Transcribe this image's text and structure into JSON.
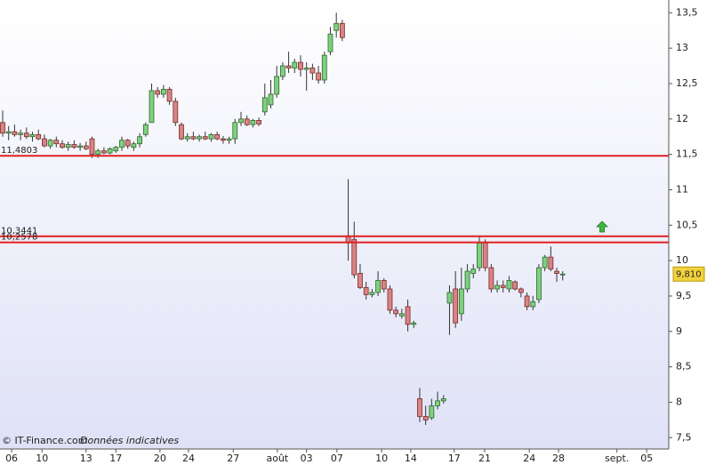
{
  "chart_data": {
    "type": "candlestick",
    "source": "© IT-Finance.com",
    "note": "Données indicatives",
    "x": [
      0,
      1,
      2,
      3,
      4,
      5,
      6,
      7,
      8,
      9,
      10,
      11,
      12,
      13,
      14,
      15,
      16,
      17,
      18,
      19,
      20,
      21,
      22,
      23,
      24,
      25,
      26,
      27,
      28,
      29,
      30,
      31,
      32,
      33,
      34,
      35,
      36,
      37,
      38,
      39,
      40,
      41,
      42,
      43,
      44,
      45,
      46,
      47,
      48,
      49,
      50,
      51,
      52,
      53,
      54,
      55,
      56,
      57,
      58,
      59,
      60,
      61,
      62,
      63,
      64,
      65,
      66,
      67,
      68,
      69,
      70,
      71,
      72,
      73,
      74,
      75,
      76,
      77,
      78,
      79,
      80,
      81,
      82,
      83,
      84,
      85,
      86,
      87,
      88,
      89,
      90,
      91,
      92,
      93,
      94
    ],
    "open": [
      11.95,
      11.8,
      11.82,
      11.78,
      11.8,
      11.75,
      11.78,
      11.72,
      11.62,
      11.7,
      11.65,
      11.6,
      11.64,
      11.6,
      11.62,
      11.72,
      11.5,
      11.55,
      11.52,
      11.55,
      11.6,
      11.7,
      11.6,
      11.65,
      11.78,
      11.95,
      12.4,
      12.35,
      12.42,
      12.25,
      11.92,
      11.72,
      11.75,
      11.72,
      11.75,
      11.72,
      11.78,
      11.72,
      11.7,
      11.72,
      11.95,
      12.0,
      11.92,
      11.98,
      12.1,
      12.2,
      12.35,
      12.6,
      12.75,
      12.72,
      12.8,
      12.7,
      12.72,
      12.65,
      12.55,
      12.95,
      13.25,
      13.35,
      10.35,
      10.3,
      9.82,
      9.62,
      9.52,
      9.55,
      9.72,
      9.6,
      9.3,
      9.22,
      9.35,
      9.1,
      8.05,
      7.8,
      7.78,
      7.95,
      8.02,
      9.4,
      9.6,
      9.25,
      9.6,
      9.82,
      9.9,
      10.25,
      9.9,
      9.6,
      9.65,
      9.6,
      9.7,
      9.6,
      9.5,
      9.35,
      9.45,
      9.9,
      10.05,
      9.85,
      9.8
    ],
    "high": [
      12.12,
      11.9,
      11.92,
      11.85,
      11.88,
      11.82,
      11.85,
      11.78,
      11.72,
      11.75,
      11.7,
      11.68,
      11.7,
      11.66,
      11.68,
      11.75,
      11.58,
      11.6,
      11.6,
      11.62,
      11.75,
      11.72,
      11.68,
      11.8,
      11.95,
      12.5,
      12.45,
      12.48,
      12.45,
      12.3,
      11.95,
      11.8,
      11.82,
      11.78,
      11.82,
      11.8,
      11.82,
      11.76,
      11.75,
      12.0,
      12.1,
      12.05,
      12.0,
      12.02,
      12.5,
      12.55,
      12.75,
      12.8,
      12.95,
      12.85,
      12.9,
      12.8,
      12.78,
      12.75,
      12.95,
      13.3,
      13.5,
      13.4,
      11.15,
      10.55,
      9.95,
      9.7,
      9.6,
      9.85,
      9.75,
      9.65,
      9.35,
      9.32,
      9.45,
      9.15,
      8.2,
      7.95,
      8.05,
      8.15,
      8.1,
      9.65,
      9.85,
      9.9,
      9.95,
      9.95,
      10.35,
      10.3,
      9.95,
      9.72,
      9.72,
      9.78,
      9.72,
      9.62,
      9.55,
      9.5,
      9.95,
      10.08,
      10.2,
      9.9,
      9.85
    ],
    "low": [
      11.75,
      11.7,
      11.75,
      11.7,
      11.72,
      11.68,
      11.7,
      11.6,
      11.58,
      11.6,
      11.58,
      11.55,
      11.58,
      11.55,
      11.56,
      11.45,
      11.45,
      11.5,
      11.5,
      11.52,
      11.55,
      11.58,
      11.55,
      11.6,
      11.75,
      11.95,
      12.3,
      12.3,
      12.2,
      11.9,
      11.7,
      11.68,
      11.7,
      11.68,
      11.7,
      11.68,
      11.7,
      11.65,
      11.65,
      11.65,
      11.9,
      11.9,
      11.88,
      11.9,
      12.05,
      12.15,
      12.3,
      12.55,
      12.65,
      12.65,
      12.6,
      12.4,
      12.55,
      12.5,
      12.5,
      12.9,
      13.15,
      13.1,
      10.0,
      9.75,
      9.6,
      9.45,
      9.48,
      9.5,
      9.55,
      9.25,
      9.2,
      9.18,
      9.0,
      9.05,
      7.72,
      7.68,
      7.75,
      7.9,
      7.98,
      8.95,
      9.05,
      9.15,
      9.55,
      9.75,
      9.85,
      9.85,
      9.55,
      9.55,
      9.55,
      9.55,
      9.58,
      9.48,
      9.3,
      9.3,
      9.4,
      9.85,
      9.85,
      9.7,
      9.72
    ],
    "close": [
      11.8,
      11.82,
      11.78,
      11.8,
      11.75,
      11.78,
      11.72,
      11.62,
      11.7,
      11.65,
      11.6,
      11.64,
      11.6,
      11.62,
      11.58,
      11.5,
      11.55,
      11.52,
      11.58,
      11.6,
      11.7,
      11.62,
      11.65,
      11.75,
      11.92,
      12.4,
      12.35,
      12.42,
      12.25,
      11.95,
      11.72,
      11.75,
      11.72,
      11.75,
      11.72,
      11.78,
      11.72,
      11.7,
      11.72,
      11.95,
      12.0,
      11.92,
      11.98,
      11.93,
      12.3,
      12.35,
      12.6,
      12.75,
      12.72,
      12.8,
      12.7,
      12.72,
      12.65,
      12.55,
      12.9,
      13.2,
      13.35,
      13.15,
      10.25,
      9.8,
      9.62,
      9.52,
      9.55,
      9.72,
      9.6,
      9.3,
      9.25,
      9.25,
      9.1,
      9.12,
      7.8,
      7.75,
      7.95,
      8.02,
      8.05,
      9.55,
      9.12,
      9.6,
      9.85,
      9.88,
      10.25,
      9.9,
      9.6,
      9.65,
      9.62,
      9.72,
      9.6,
      9.55,
      9.35,
      9.42,
      9.9,
      10.05,
      9.88,
      9.82,
      9.81
    ],
    "up_color": "#7fd07f",
    "down_color": "#d98484",
    "xlim": [
      -0.45,
      111.8
    ],
    "xticks": [
      {
        "value": 1.5,
        "label": "06"
      },
      {
        "value": 6.6,
        "label": "10"
      },
      {
        "value": 14,
        "label": "13"
      },
      {
        "value": 19,
        "label": "17"
      },
      {
        "value": 26.4,
        "label": "20"
      },
      {
        "value": 31.2,
        "label": "24"
      },
      {
        "value": 38.7,
        "label": "27"
      },
      {
        "value": 46.1,
        "label": "août"
      },
      {
        "value": 51,
        "label": "03"
      },
      {
        "value": 56.1,
        "label": "07"
      },
      {
        "value": 63.6,
        "label": "10"
      },
      {
        "value": 68.5,
        "label": "14"
      },
      {
        "value": 75.8,
        "label": "17"
      },
      {
        "value": 80.9,
        "label": "21"
      },
      {
        "value": 88.4,
        "label": "24"
      },
      {
        "value": 93.3,
        "label": "28"
      },
      {
        "value": 103.1,
        "label": "sept."
      },
      {
        "value": 108.1,
        "label": "05"
      }
    ],
    "ylim": [
      7.34,
      13.68
    ],
    "yticks": [
      {
        "value": 7.5,
        "label": "7,5"
      },
      8,
      {
        "value": 8.5,
        "label": "8,5"
      },
      9,
      {
        "value": 9.5,
        "label": "9,5"
      },
      10,
      {
        "value": 10.5,
        "label": "10,5"
      },
      11,
      {
        "value": 11.5,
        "label": "11,5"
      },
      12,
      {
        "value": 12.5,
        "label": "12,5"
      },
      13,
      {
        "value": 13.5,
        "label": "13,5"
      }
    ],
    "levels": [
      {
        "value": 11.4803,
        "label": "11,4803"
      },
      {
        "value": 10.3441,
        "label": "10,3441"
      },
      {
        "value": 10.2578,
        "label": "10,2578"
      }
    ],
    "level_color": "#e02020",
    "last_price": {
      "value": 9.81,
      "label": "9,810"
    }
  }
}
